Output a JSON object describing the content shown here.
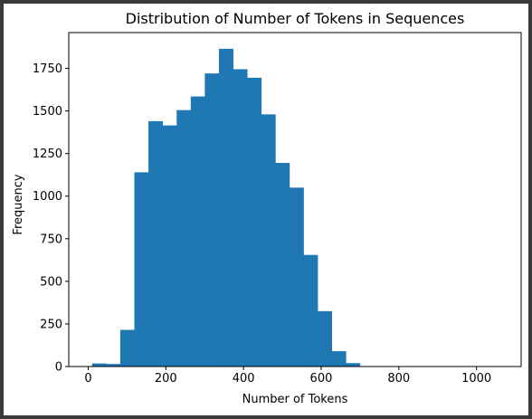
{
  "colors": {
    "bar": "#1f77b4",
    "frame": "#3a3a3a",
    "axes": "#000000"
  },
  "chart_data": {
    "type": "bar",
    "title": "Distribution of Number of Tokens in Sequences",
    "xlabel": "Number of Tokens",
    "ylabel": "Frequency",
    "xlim": [
      -50,
      1115
    ],
    "ylim": [
      0,
      1960
    ],
    "xticks": [
      0,
      200,
      400,
      600,
      800,
      1000
    ],
    "xtick_labels": [
      "0",
      "200",
      "400",
      "600",
      "800",
      "1000"
    ],
    "yticks": [
      0,
      250,
      500,
      750,
      1000,
      1250,
      1500,
      1750
    ],
    "ytick_labels": [
      "0",
      "250",
      "500",
      "750",
      "1000",
      "1250",
      "1500",
      "1750"
    ],
    "bin_edges": [
      10,
      46.3,
      82.6,
      118.9,
      155.2,
      191.5,
      227.8,
      264.1,
      300.4,
      336.7,
      373,
      409.3,
      445.6,
      481.9,
      518.2,
      554.5,
      590.8,
      627.1,
      663.4,
      699.7,
      736,
      772.3,
      808.6,
      844.9,
      881.2,
      917.5,
      953.8,
      990.1,
      1026.4,
      1062.7
    ],
    "values": [
      18,
      15,
      215,
      1140,
      1440,
      1415,
      1505,
      1585,
      1720,
      1865,
      1745,
      1695,
      1480,
      1195,
      1050,
      655,
      325,
      90,
      20,
      0,
      0,
      0,
      0,
      0,
      0,
      0,
      0,
      0,
      2
    ],
    "grid": false
  }
}
